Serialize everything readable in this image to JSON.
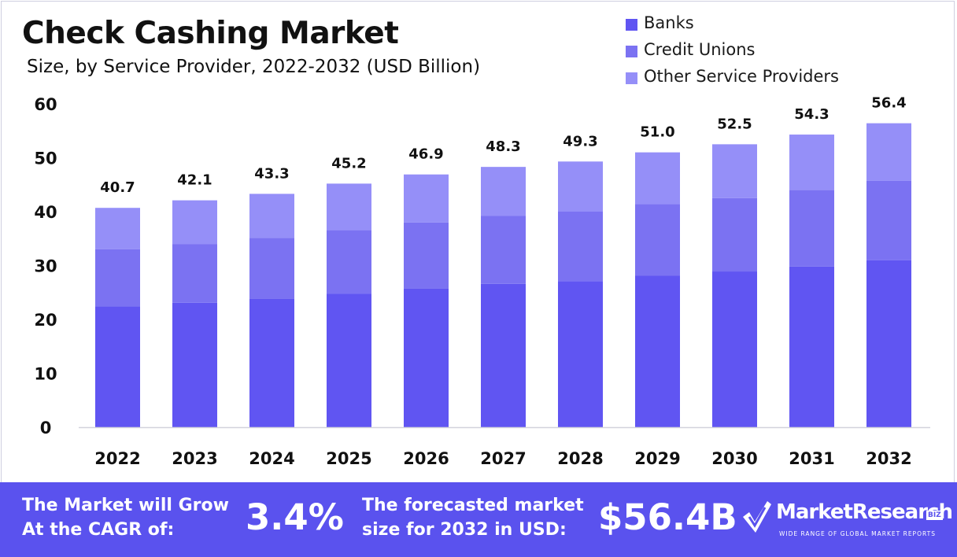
{
  "header": {
    "title": "Check Cashing Market",
    "subtitle": "Size, by Service Provider, 2022-2032 (USD Billion)"
  },
  "chart_data": {
    "type": "bar",
    "stacked": true,
    "categories": [
      "2022",
      "2023",
      "2024",
      "2025",
      "2026",
      "2027",
      "2028",
      "2029",
      "2030",
      "2031",
      "2032"
    ],
    "series": [
      {
        "name": "Banks",
        "color": "#6055f2",
        "values": [
          22.4,
          23.1,
          23.8,
          24.8,
          25.7,
          26.6,
          27.1,
          28.1,
          28.9,
          29.8,
          31.0
        ]
      },
      {
        "name": "Credit Unions",
        "color": "#7b72f2",
        "values": [
          10.6,
          10.9,
          11.3,
          11.8,
          12.3,
          12.6,
          12.9,
          13.3,
          13.6,
          14.2,
          14.7
        ]
      },
      {
        "name": "Other Service Providers",
        "color": "#958ff8",
        "values": [
          7.7,
          8.1,
          8.2,
          8.6,
          8.9,
          9.1,
          9.3,
          9.6,
          10.0,
          10.3,
          10.7
        ]
      }
    ],
    "totals": [
      "40.7",
      "42.1",
      "43.3",
      "45.2",
      "46.9",
      "48.3",
      "49.3",
      "51.0",
      "52.5",
      "54.3",
      "56.4"
    ],
    "yticks": [
      "0",
      "10",
      "20",
      "30",
      "40",
      "50",
      "60"
    ],
    "ylim": [
      0,
      60
    ],
    "grid": false,
    "legend_position": "top-right"
  },
  "footer": {
    "cagr_line1": "The Market will Grow",
    "cagr_line2": "At the CAGR of:",
    "cagr_value": "3.4%",
    "forecast_line1": "The forecasted market",
    "forecast_line2": "size for 2032 in USD:",
    "forecast_value": "$56.4B",
    "logo_text": "MarketResearch",
    "logo_suffix": "BIZ",
    "logo_tagline": "WIDE RANGE OF GLOBAL MARKET REPORTS"
  }
}
